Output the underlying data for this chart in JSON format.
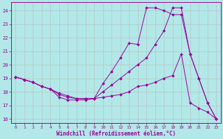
{
  "xlabel": "Windchill (Refroidissement éolien,°C)",
  "bg_color": "#b2e8e8",
  "grid_color": "#bbbbbb",
  "line_color": "#990099",
  "xlim": [
    -0.5,
    23.5
  ],
  "ylim": [
    15.7,
    24.6
  ],
  "yticks": [
    16,
    17,
    18,
    19,
    20,
    21,
    22,
    23,
    24
  ],
  "xticks": [
    0,
    1,
    2,
    3,
    4,
    5,
    6,
    7,
    8,
    9,
    10,
    11,
    12,
    13,
    14,
    15,
    16,
    17,
    18,
    19,
    20,
    21,
    22,
    23
  ],
  "series": [
    {
      "x": [
        0,
        1,
        2,
        3,
        4,
        5,
        6,
        7,
        8,
        9,
        10,
        11,
        12,
        13,
        14,
        15,
        16,
        17,
        18,
        19,
        20,
        21,
        22,
        23
      ],
      "y": [
        19.1,
        18.9,
        18.7,
        18.4,
        18.2,
        17.8,
        17.6,
        17.5,
        17.5,
        17.5,
        18.6,
        19.5,
        20.5,
        21.6,
        21.5,
        24.2,
        24.2,
        24.0,
        23.7,
        23.7,
        20.8,
        19.0,
        17.2,
        16.0
      ]
    },
    {
      "x": [
        0,
        1,
        2,
        3,
        4,
        5,
        6,
        7,
        8,
        9,
        10,
        11,
        12,
        13,
        14,
        15,
        16,
        17,
        18,
        19,
        20,
        21,
        22,
        23
      ],
      "y": [
        19.1,
        18.9,
        18.7,
        18.4,
        18.2,
        17.9,
        17.7,
        17.5,
        17.5,
        17.5,
        18.0,
        18.5,
        19.0,
        19.5,
        20.0,
        20.5,
        21.5,
        22.5,
        24.2,
        24.2,
        20.8,
        19.0,
        17.2,
        16.0
      ]
    },
    {
      "x": [
        0,
        1,
        2,
        3,
        4,
        5,
        6,
        7,
        8,
        9,
        10,
        11,
        12,
        13,
        14,
        15,
        16,
        17,
        18,
        19,
        20,
        21,
        22,
        23
      ],
      "y": [
        19.1,
        18.9,
        18.7,
        18.4,
        18.2,
        17.6,
        17.4,
        17.4,
        17.4,
        17.5,
        17.6,
        17.7,
        17.8,
        18.0,
        18.4,
        18.5,
        18.7,
        19.0,
        19.2,
        20.8,
        17.2,
        16.8,
        16.5,
        16.0
      ]
    }
  ]
}
